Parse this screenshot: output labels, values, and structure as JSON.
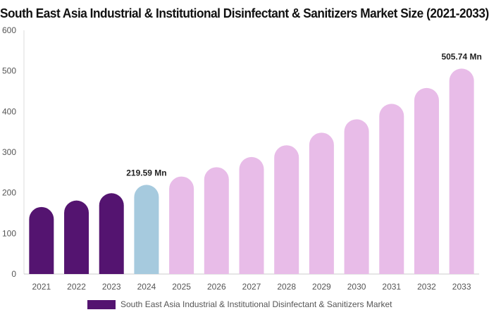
{
  "chart_data": {
    "type": "bar",
    "title": "South East Asia Industrial & Institutional Disinfectant & Sanitizers Market Size (2021-2033)",
    "categories": [
      "2021",
      "2022",
      "2023",
      "2024",
      "2025",
      "2026",
      "2027",
      "2028",
      "2029",
      "2030",
      "2031",
      "2032",
      "2033"
    ],
    "series": [
      {
        "name": "South East Asia Industrial & Institutional Disinfectant & Sanitizers Market",
        "values": [
          165,
          181,
          199,
          219.59,
          240,
          263,
          288,
          317,
          348,
          381,
          419,
          458,
          505.74
        ]
      }
    ],
    "bar_colors": [
      "#541470",
      "#541470",
      "#541470",
      "#a6cade",
      "#e8bce8",
      "#e8bce8",
      "#e8bce8",
      "#e8bce8",
      "#e8bce8",
      "#e8bce8",
      "#e8bce8",
      "#e8bce8",
      "#e8bce8"
    ],
    "data_labels": [
      {
        "index": 3,
        "text": "219.59 Mn"
      },
      {
        "index": 12,
        "text": "505.74 Mn"
      }
    ],
    "ylim": [
      0,
      600
    ],
    "yticks": [
      0,
      100,
      200,
      300,
      400,
      500,
      600
    ],
    "grid": false,
    "legend": {
      "position": "bottom",
      "color": "#541470"
    }
  }
}
